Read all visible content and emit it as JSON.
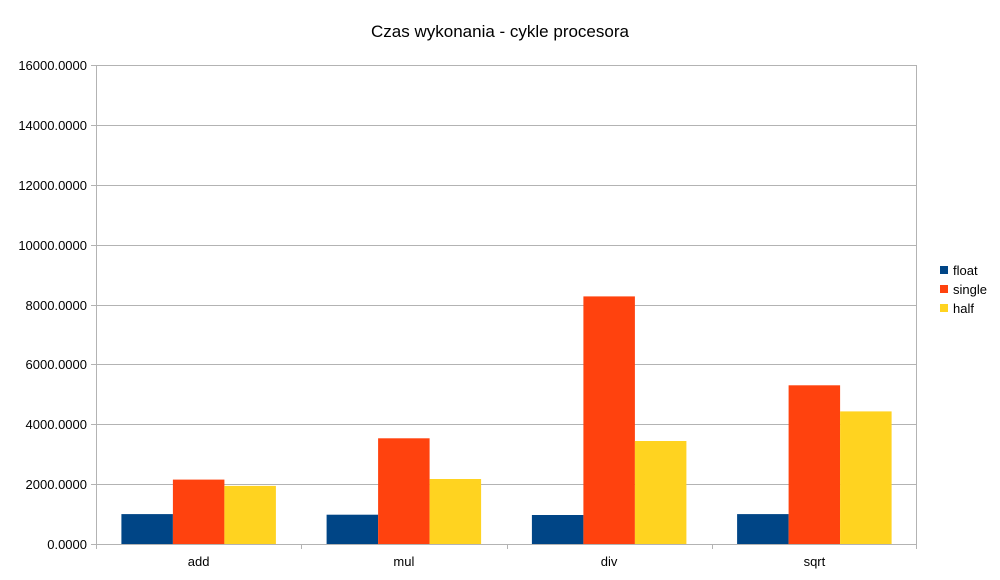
{
  "chart_data": {
    "type": "bar",
    "title": "Czas wykonania - cykle procesora",
    "xlabel": "",
    "ylabel": "",
    "categories": [
      "add",
      "mul",
      "div",
      "sqrt"
    ],
    "series": [
      {
        "name": "float",
        "color": "#004586",
        "values": [
          1000,
          980,
          970,
          1000
        ]
      },
      {
        "name": "single",
        "color": "#ff420e",
        "values": [
          2150,
          3530,
          8270,
          5300
        ]
      },
      {
        "name": "half",
        "color": "#ffd320",
        "values": [
          1940,
          2170,
          3440,
          4430
        ]
      }
    ],
    "ylim": [
      0,
      16000
    ],
    "yticks": [
      "0.0000",
      "2000.0000",
      "4000.0000",
      "6000.0000",
      "8000.0000",
      "10000.0000",
      "12000.0000",
      "14000.0000",
      "16000.0000"
    ],
    "grid": true,
    "legend_position": "right"
  }
}
